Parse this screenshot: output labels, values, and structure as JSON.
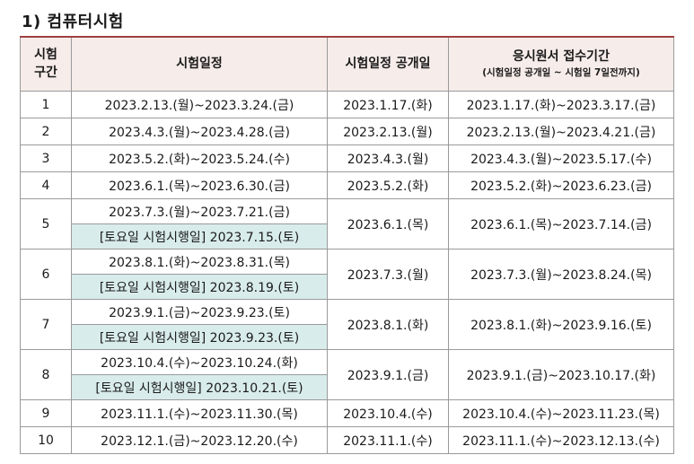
{
  "title": "1) 컴퓨터시험",
  "headers": {
    "period": [
      "시험",
      "구간"
    ],
    "schedule": "시험일정",
    "announce": "시험일정 공개일",
    "application": "응시원서 접수기간",
    "application_sub": "(시험일정 공개일 ~ 시험일 7일전까지)"
  },
  "rows": [
    {
      "no": "1",
      "schedule": "2023.2.13.(월)~2023.3.24.(금)",
      "announce": "2023.1.17.(화)",
      "application": "2023.1.17.(화)~2023.3.17.(금)"
    },
    {
      "no": "2",
      "schedule": "2023.4.3.(월)~2023.4.28.(금)",
      "announce": "2023.2.13.(월)",
      "application": "2023.2.13.(월)~2023.4.21.(금)"
    },
    {
      "no": "3",
      "schedule": "2023.5.2.(화)~2023.5.24.(수)",
      "announce": "2023.4.3.(월)",
      "application": "2023.4.3.(월)~2023.5.17.(수)"
    },
    {
      "no": "4",
      "schedule": "2023.6.1.(목)~2023.6.30.(금)",
      "announce": "2023.5.2.(화)",
      "application": "2023.5.2.(화)~2023.6.23.(금)"
    },
    {
      "no": "5",
      "schedule": "2023.7.3.(월)~2023.7.21.(금)",
      "saturday": "[토요일 시험시행일] 2023.7.15.(토)",
      "announce": "2023.6.1.(목)",
      "application": "2023.6.1.(목)~2023.7.14.(금)"
    },
    {
      "no": "6",
      "schedule": "2023.8.1.(화)~2023.8.31.(목)",
      "saturday": "[토요일 시험시행일] 2023.8.19.(토)",
      "announce": "2023.7.3.(월)",
      "application": "2023.7.3.(월)~2023.8.24.(목)"
    },
    {
      "no": "7",
      "schedule": "2023.9.1.(금)~2023.9.23.(토)",
      "saturday": "[토요일 시험시행일] 2023.9.23.(토)",
      "announce": "2023.8.1.(화)",
      "application": "2023.8.1.(화)~2023.9.16.(토)"
    },
    {
      "no": "8",
      "schedule": "2023.10.4.(수)~2023.10.24.(화)",
      "saturday": "[토요일 시험시행일] 2023.10.21.(토)",
      "announce": "2023.9.1.(금)",
      "application": "2023.9.1.(금)~2023.10.17.(화)"
    },
    {
      "no": "9",
      "schedule": "2023.11.1.(수)~2023.11.30.(목)",
      "announce": "2023.10.4.(수)",
      "application": "2023.10.4.(수)~2023.11.23.(목)"
    },
    {
      "no": "10",
      "schedule": "2023.12.1.(금)~2023.12.20.(수)",
      "announce": "2023.11.1.(수)",
      "application": "2023.11.1.(수)~2023.12.13.(수)"
    }
  ],
  "colors": {
    "header_bg": "#f6ece9",
    "header_rule": "#a04040",
    "saturday_bg": "#d9ecec"
  }
}
